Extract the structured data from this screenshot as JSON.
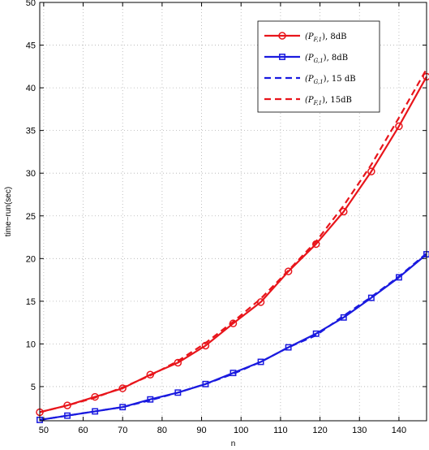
{
  "chart_data": {
    "type": "line",
    "title": "",
    "xlabel": "n",
    "ylabel": "time−run(sec)",
    "xlim": [
      49,
      147
    ],
    "ylim": [
      1,
      50
    ],
    "xticks": [
      50,
      60,
      70,
      80,
      90,
      100,
      110,
      120,
      130,
      140
    ],
    "yticks": [
      5,
      10,
      15,
      20,
      25,
      30,
      35,
      40,
      45,
      50
    ],
    "grid": true,
    "legend_position": "top-right",
    "x": [
      49,
      56,
      63,
      70,
      77,
      84,
      91,
      98,
      105,
      112,
      119,
      126,
      133,
      140,
      147
    ],
    "series": [
      {
        "name": "(P_{F,1}), 8dB",
        "name_main": "(P",
        "name_sub": "F,1",
        "name_tail": "), 8dB",
        "color": "#e8151b",
        "dash": "solid",
        "marker": "circle",
        "values": [
          2.0,
          2.8,
          3.8,
          4.8,
          6.4,
          7.8,
          9.8,
          12.4,
          14.9,
          18.5,
          21.7,
          25.5,
          30.2,
          35.5,
          41.3
        ]
      },
      {
        "name": "(P_{G,1}), 8dB",
        "name_main": "(P",
        "name_sub": "G,1",
        "name_tail": "), 8dB",
        "color": "#1a1adf",
        "dash": "solid",
        "marker": "square",
        "values": [
          1.1,
          1.6,
          2.1,
          2.6,
          3.5,
          4.3,
          5.3,
          6.6,
          7.9,
          9.6,
          11.2,
          13.1,
          15.4,
          17.8,
          20.5
        ]
      },
      {
        "name": "(P_{G,1}), 15 dB",
        "name_main": "(P",
        "name_sub": "G,1",
        "name_tail": "), 15 dB",
        "color": "#1a1adf",
        "dash": "dashed",
        "marker": "none",
        "values": [
          1.1,
          1.6,
          2.1,
          2.6,
          3.4,
          4.3,
          5.3,
          6.5,
          7.9,
          9.6,
          11.0,
          13.3,
          15.5,
          17.9,
          20.6
        ]
      },
      {
        "name": "(P_{F,1}), 15dB",
        "name_main": "(P",
        "name_sub": "F,1",
        "name_tail": "), 15dB",
        "color": "#e8151b",
        "dash": "dashed",
        "marker": "none",
        "values": [
          2.0,
          2.8,
          3.7,
          4.9,
          6.3,
          8.0,
          10.1,
          12.6,
          15.3,
          18.6,
          22.0,
          26.2,
          31.0,
          36.5,
          42.2
        ]
      }
    ]
  }
}
